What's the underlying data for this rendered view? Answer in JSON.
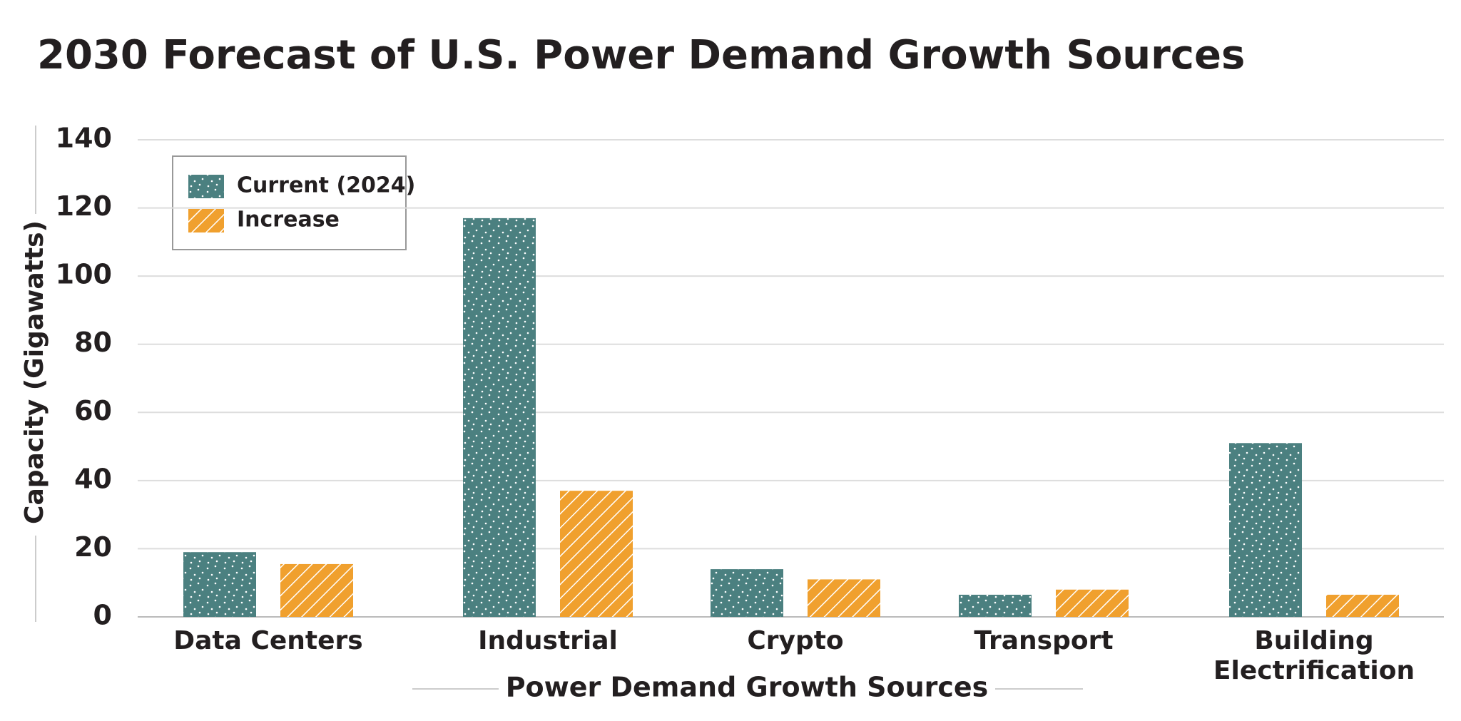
{
  "chart_data": {
    "type": "bar",
    "title": "2030 Forecast of U.S. Power Demand Growth Sources",
    "x_label": "Power Demand Growth Sources",
    "y_label": "Capacity (Gigawatts)",
    "categories": [
      "Data Centers",
      "Industrial",
      "Crypto",
      "Transport",
      "Building Electrification"
    ],
    "series": [
      {
        "name": "Current (2024)",
        "color": "#4b8080",
        "values": [
          19,
          117,
          14,
          6.5,
          51
        ]
      },
      {
        "name": "Increase",
        "color": "#f0a02e",
        "values": [
          15.5,
          37,
          11,
          8,
          6.5
        ]
      }
    ],
    "ylim": [
      0,
      140
    ],
    "yticks": [
      0,
      20,
      40,
      60,
      80,
      100,
      120,
      140
    ],
    "grid": true,
    "legend": "upper left"
  }
}
